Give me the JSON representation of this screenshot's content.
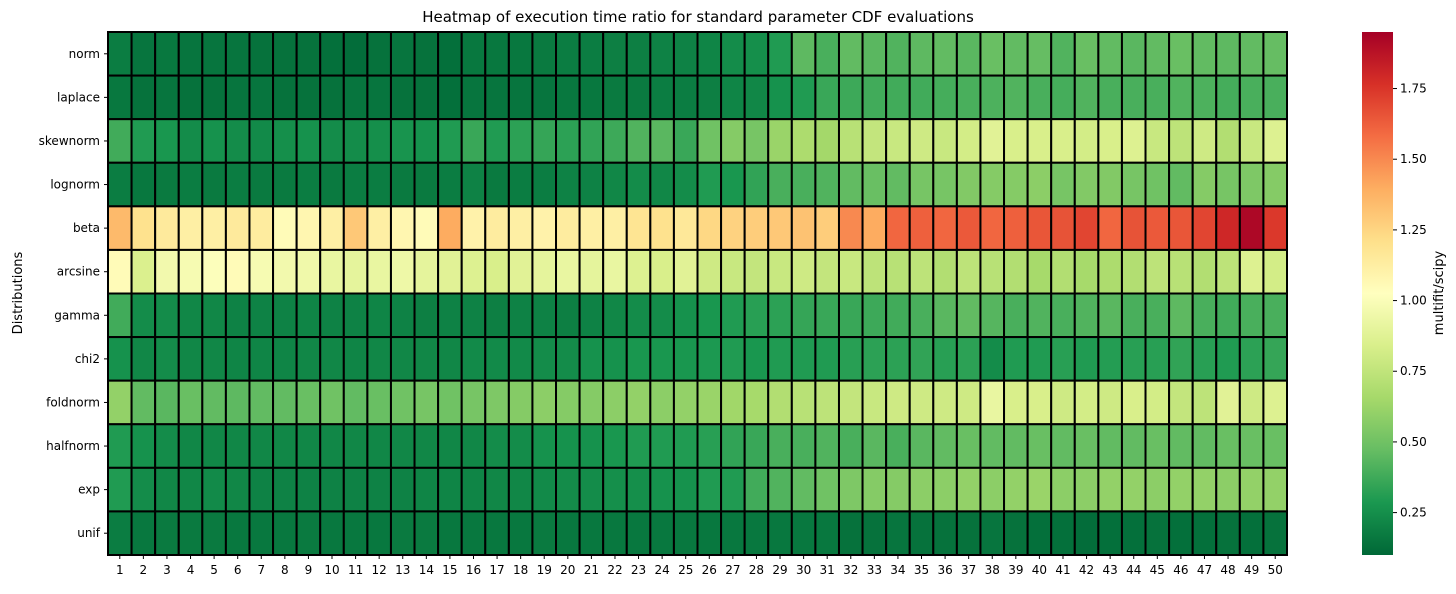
{
  "chart_data": {
    "type": "heatmap",
    "title": "Heatmap of execution time ratio for standard parameter CDF evaluations",
    "ylabel": "Distributions",
    "xlabel": "",
    "colorbar_label": "multifit/scipy",
    "colormap": "RdYlGn_r",
    "vmin": 0.1,
    "vmax": 1.95,
    "colorbar_ticks": [
      0.25,
      0.5,
      0.75,
      1.0,
      1.25,
      1.5,
      1.75
    ],
    "colorbar_tick_labels": [
      "0.25",
      "0.50",
      "0.75",
      "1.00",
      "1.25",
      "1.50",
      "1.75"
    ],
    "x_categories": [
      "1",
      "2",
      "3",
      "4",
      "5",
      "6",
      "7",
      "8",
      "9",
      "10",
      "11",
      "12",
      "13",
      "14",
      "15",
      "16",
      "17",
      "18",
      "19",
      "20",
      "21",
      "22",
      "23",
      "24",
      "25",
      "26",
      "27",
      "28",
      "29",
      "30",
      "31",
      "32",
      "33",
      "34",
      "35",
      "36",
      "37",
      "38",
      "39",
      "40",
      "41",
      "42",
      "43",
      "44",
      "45",
      "46",
      "47",
      "48",
      "49",
      "50"
    ],
    "y_categories": [
      "norm",
      "laplace",
      "skewnorm",
      "lognorm",
      "beta",
      "arcsine",
      "gamma",
      "chi2",
      "foldnorm",
      "halfnorm",
      "exp",
      "unif"
    ],
    "values": [
      [
        0.18,
        0.15,
        0.16,
        0.15,
        0.15,
        0.15,
        0.14,
        0.14,
        0.14,
        0.13,
        0.12,
        0.14,
        0.15,
        0.14,
        0.13,
        0.16,
        0.16,
        0.16,
        0.17,
        0.18,
        0.18,
        0.19,
        0.19,
        0.2,
        0.2,
        0.21,
        0.24,
        0.25,
        0.3,
        0.45,
        0.4,
        0.46,
        0.44,
        0.42,
        0.45,
        0.46,
        0.44,
        0.48,
        0.46,
        0.47,
        0.42,
        0.48,
        0.46,
        0.44,
        0.46,
        0.48,
        0.46,
        0.45,
        0.46,
        0.47
      ],
      [
        0.16,
        0.14,
        0.15,
        0.14,
        0.14,
        0.15,
        0.15,
        0.14,
        0.14,
        0.14,
        0.15,
        0.15,
        0.14,
        0.14,
        0.13,
        0.15,
        0.15,
        0.15,
        0.15,
        0.16,
        0.16,
        0.17,
        0.17,
        0.18,
        0.18,
        0.19,
        0.21,
        0.22,
        0.26,
        0.3,
        0.36,
        0.37,
        0.38,
        0.38,
        0.38,
        0.39,
        0.4,
        0.41,
        0.42,
        0.4,
        0.39,
        0.42,
        0.4,
        0.4,
        0.4,
        0.42,
        0.41,
        0.39,
        0.4,
        0.4
      ],
      [
        0.38,
        0.3,
        0.28,
        0.24,
        0.26,
        0.24,
        0.23,
        0.25,
        0.26,
        0.24,
        0.24,
        0.25,
        0.27,
        0.26,
        0.3,
        0.36,
        0.3,
        0.33,
        0.35,
        0.33,
        0.34,
        0.37,
        0.42,
        0.44,
        0.36,
        0.5,
        0.56,
        0.52,
        0.62,
        0.68,
        0.65,
        0.72,
        0.76,
        0.78,
        0.8,
        0.78,
        0.82,
        0.88,
        0.84,
        0.84,
        0.84,
        0.82,
        0.84,
        0.86,
        0.78,
        0.74,
        0.8,
        0.7,
        0.78,
        0.86
      ],
      [
        0.18,
        0.16,
        0.17,
        0.18,
        0.17,
        0.18,
        0.17,
        0.17,
        0.18,
        0.17,
        0.18,
        0.18,
        0.17,
        0.17,
        0.18,
        0.2,
        0.17,
        0.18,
        0.18,
        0.2,
        0.2,
        0.22,
        0.24,
        0.22,
        0.24,
        0.3,
        0.28,
        0.34,
        0.4,
        0.4,
        0.42,
        0.46,
        0.48,
        0.46,
        0.52,
        0.52,
        0.55,
        0.56,
        0.56,
        0.58,
        0.52,
        0.55,
        0.55,
        0.52,
        0.5,
        0.46,
        0.56,
        0.52,
        0.54,
        0.56
      ],
      [
        1.35,
        1.2,
        1.15,
        1.12,
        1.12,
        1.15,
        1.14,
        1.05,
        1.08,
        1.12,
        1.3,
        1.12,
        1.08,
        1.05,
        1.4,
        1.1,
        1.14,
        1.12,
        1.1,
        1.14,
        1.12,
        1.12,
        1.18,
        1.2,
        1.16,
        1.24,
        1.26,
        1.28,
        1.3,
        1.32,
        1.28,
        1.5,
        1.4,
        1.6,
        1.62,
        1.6,
        1.64,
        1.6,
        1.62,
        1.65,
        1.66,
        1.7,
        1.6,
        1.66,
        1.64,
        1.65,
        1.7,
        1.8,
        1.92,
        1.74
      ],
      [
        1.05,
        0.85,
        0.96,
        0.98,
        1.01,
        1.05,
        0.98,
        0.96,
        0.95,
        0.92,
        0.9,
        0.92,
        0.94,
        0.9,
        0.88,
        0.86,
        0.84,
        0.88,
        0.9,
        0.92,
        0.9,
        0.92,
        0.86,
        0.84,
        0.88,
        0.8,
        0.78,
        0.76,
        0.78,
        0.8,
        0.76,
        0.78,
        0.74,
        0.72,
        0.74,
        0.7,
        0.74,
        0.72,
        0.7,
        0.66,
        0.7,
        0.66,
        0.68,
        0.7,
        0.74,
        0.72,
        0.7,
        0.74,
        0.86,
        0.82
      ],
      [
        0.38,
        0.24,
        0.24,
        0.22,
        0.22,
        0.2,
        0.2,
        0.2,
        0.21,
        0.2,
        0.2,
        0.21,
        0.2,
        0.19,
        0.2,
        0.2,
        0.19,
        0.2,
        0.2,
        0.19,
        0.2,
        0.22,
        0.24,
        0.24,
        0.26,
        0.28,
        0.3,
        0.32,
        0.33,
        0.35,
        0.36,
        0.36,
        0.37,
        0.38,
        0.4,
        0.44,
        0.46,
        0.43,
        0.4,
        0.42,
        0.4,
        0.42,
        0.44,
        0.4,
        0.4,
        0.45,
        0.4,
        0.38,
        0.4,
        0.4
      ],
      [
        0.26,
        0.22,
        0.24,
        0.22,
        0.22,
        0.21,
        0.21,
        0.21,
        0.22,
        0.22,
        0.21,
        0.22,
        0.22,
        0.22,
        0.22,
        0.23,
        0.23,
        0.23,
        0.24,
        0.24,
        0.26,
        0.26,
        0.28,
        0.28,
        0.28,
        0.29,
        0.3,
        0.28,
        0.3,
        0.3,
        0.3,
        0.32,
        0.33,
        0.33,
        0.34,
        0.32,
        0.33,
        0.24,
        0.3,
        0.3,
        0.32,
        0.3,
        0.31,
        0.32,
        0.32,
        0.34,
        0.32,
        0.3,
        0.33,
        0.35
      ],
      [
        0.6,
        0.46,
        0.44,
        0.48,
        0.46,
        0.45,
        0.46,
        0.46,
        0.48,
        0.5,
        0.46,
        0.48,
        0.5,
        0.52,
        0.5,
        0.52,
        0.54,
        0.56,
        0.58,
        0.56,
        0.56,
        0.58,
        0.6,
        0.58,
        0.6,
        0.62,
        0.64,
        0.66,
        0.7,
        0.72,
        0.74,
        0.76,
        0.78,
        0.8,
        0.8,
        0.8,
        0.8,
        0.92,
        0.84,
        0.84,
        0.8,
        0.82,
        0.8,
        0.84,
        0.82,
        0.76,
        0.74,
        0.88,
        0.8,
        0.86
      ],
      [
        0.3,
        0.26,
        0.24,
        0.22,
        0.22,
        0.22,
        0.22,
        0.22,
        0.22,
        0.22,
        0.22,
        0.22,
        0.22,
        0.22,
        0.22,
        0.22,
        0.24,
        0.24,
        0.26,
        0.26,
        0.26,
        0.28,
        0.3,
        0.3,
        0.3,
        0.32,
        0.34,
        0.36,
        0.4,
        0.4,
        0.42,
        0.4,
        0.44,
        0.4,
        0.44,
        0.46,
        0.48,
        0.46,
        0.46,
        0.48,
        0.46,
        0.48,
        0.46,
        0.46,
        0.48,
        0.46,
        0.46,
        0.48,
        0.48,
        0.48
      ],
      [
        0.3,
        0.24,
        0.22,
        0.22,
        0.23,
        0.22,
        0.2,
        0.2,
        0.2,
        0.2,
        0.2,
        0.2,
        0.2,
        0.21,
        0.21,
        0.21,
        0.22,
        0.22,
        0.23,
        0.24,
        0.24,
        0.25,
        0.25,
        0.26,
        0.26,
        0.3,
        0.3,
        0.38,
        0.42,
        0.46,
        0.5,
        0.54,
        0.56,
        0.56,
        0.58,
        0.58,
        0.6,
        0.58,
        0.6,
        0.62,
        0.58,
        0.58,
        0.6,
        0.6,
        0.58,
        0.6,
        0.6,
        0.58,
        0.6,
        0.6
      ],
      [
        0.18,
        0.16,
        0.17,
        0.17,
        0.17,
        0.16,
        0.16,
        0.16,
        0.17,
        0.16,
        0.16,
        0.16,
        0.17,
        0.17,
        0.16,
        0.16,
        0.16,
        0.16,
        0.17,
        0.16,
        0.16,
        0.16,
        0.16,
        0.16,
        0.16,
        0.16,
        0.16,
        0.16,
        0.16,
        0.16,
        0.16,
        0.14,
        0.14,
        0.15,
        0.14,
        0.14,
        0.14,
        0.15,
        0.14,
        0.13,
        0.13,
        0.12,
        0.13,
        0.13,
        0.14,
        0.13,
        0.13,
        0.14,
        0.13,
        0.14
      ]
    ]
  }
}
